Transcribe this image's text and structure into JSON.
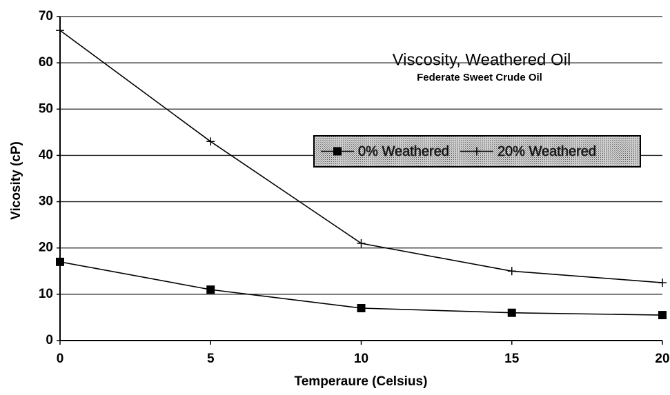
{
  "chart_data": {
    "type": "line",
    "title": "Viscosity, Weathered Oil",
    "subtitle": "Federate Sweet Crude Oil",
    "x_label": "Temperaure (Celsius)",
    "y_label": "Vicosity (cP)",
    "x": [
      0,
      5,
      10,
      15,
      20
    ],
    "series": [
      {
        "name": "0% Weathered",
        "color": "#000000",
        "marker": "square",
        "values": [
          17,
          11,
          7,
          6,
          5.5
        ]
      },
      {
        "name": "20% Weathered",
        "color": "#000000",
        "marker": "plus",
        "values": [
          67,
          43,
          21,
          15,
          12.5
        ]
      }
    ],
    "xlim": [
      0,
      20
    ],
    "xticks": [
      0,
      5,
      10,
      15,
      20
    ],
    "ylim": [
      0,
      70
    ],
    "yticks": [
      0,
      10,
      20,
      30,
      40,
      50,
      60,
      70
    ],
    "grid": true
  }
}
